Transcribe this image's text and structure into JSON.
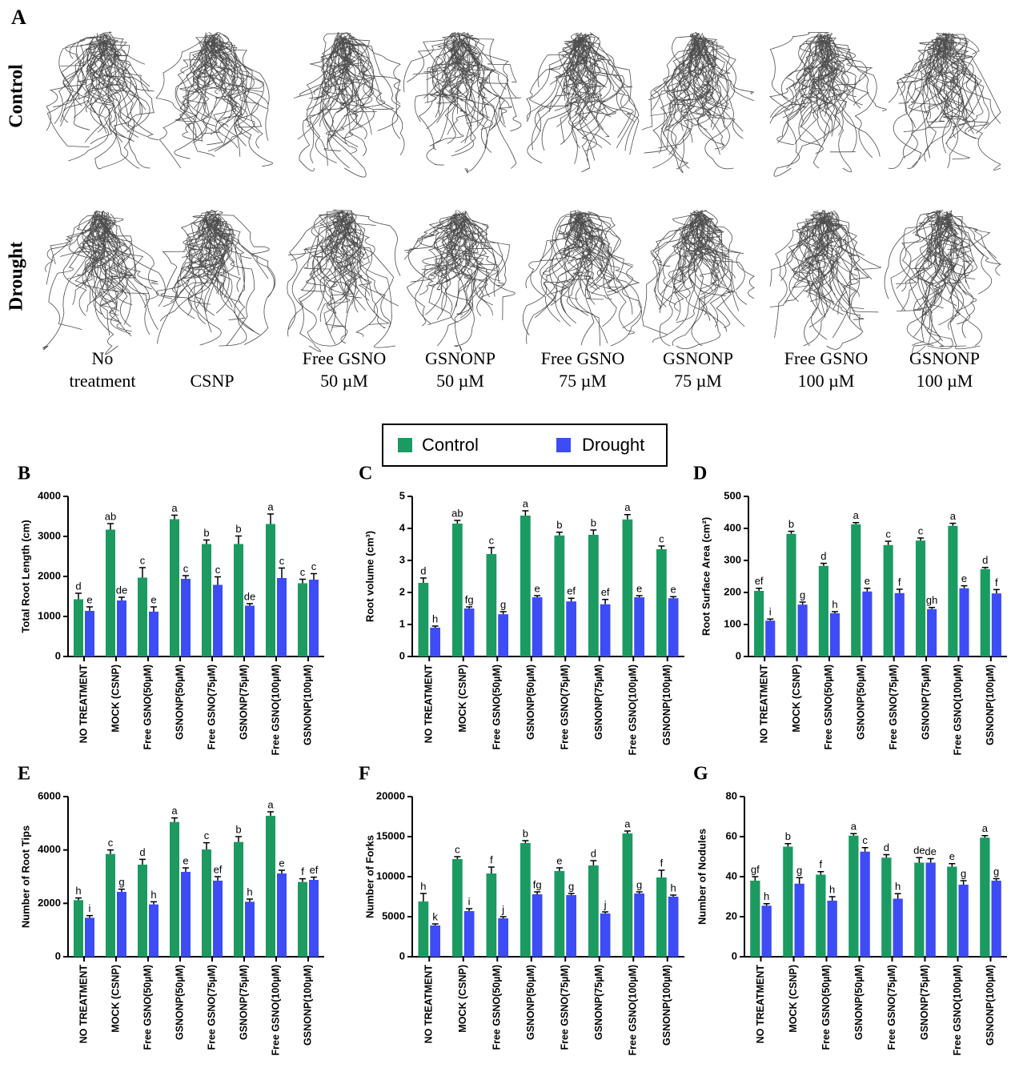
{
  "panel_a": {
    "label": "A",
    "rows": [
      "Control",
      "Drought"
    ],
    "treatments": [
      [
        "No",
        "treatment"
      ],
      [
        "CSNP"
      ],
      [
        "Free GSNO",
        "50 µM"
      ],
      [
        "GSNONP",
        "50 µM"
      ],
      [
        "Free GSNO",
        "75 µM"
      ],
      [
        "GSNONP",
        "75 µM"
      ],
      [
        "Free GSNO",
        "100 µM"
      ],
      [
        "GSNONP",
        "100 µM"
      ]
    ]
  },
  "legend": {
    "series": [
      {
        "name": "Control",
        "color": "#1b9a62"
      },
      {
        "name": "Drought",
        "color": "#3d4cf5"
      }
    ]
  },
  "chart_data": [
    {
      "type": "bar",
      "panel": "B",
      "ylabel": "Total Root Length (cm)",
      "categories": [
        "NO TREATMENT",
        "MOCK (CSNP)",
        "Free GSNO(50µM)",
        "GSNONP(50µM)",
        "Free GSNO(75µM)",
        "GSNONP(75µM)",
        "Free GSNO(100µM)",
        "GSNONP(100µM)"
      ],
      "series": [
        {
          "values": [
            1430,
            3170,
            1970,
            3430,
            2810,
            2810,
            3310,
            1830
          ],
          "errors": [
            150,
            150,
            250,
            100,
            100,
            200,
            250,
            100
          ],
          "letters": [
            "d",
            "ab",
            "c",
            "a",
            "b",
            "b",
            "a",
            "c"
          ]
        },
        {
          "values": [
            1140,
            1400,
            1120,
            1940,
            1790,
            1270,
            1960,
            1920
          ],
          "errors": [
            100,
            80,
            120,
            80,
            200,
            50,
            250,
            150
          ],
          "letters": [
            "e",
            "de",
            "e",
            "c",
            "c",
            "de",
            "c",
            "c"
          ]
        }
      ],
      "ylim": [
        0,
        4000
      ],
      "yticks": [
        0,
        1000,
        2000,
        3000,
        4000
      ]
    },
    {
      "type": "bar",
      "panel": "C",
      "ylabel": "Root volume (cm³)",
      "categories": [
        "NO TREATMENT",
        "MOCK (CSNP)",
        "Free GSNO(50µM)",
        "GSNONP(50µM)",
        "Free GSNO(75µM)",
        "GSNONP(75µM)",
        "Free GSNO(100µM)",
        "GSNONP(100µM)"
      ],
      "series": [
        {
          "values": [
            2.3,
            4.15,
            3.2,
            4.4,
            3.78,
            3.8,
            4.28,
            3.35
          ],
          "errors": [
            0.15,
            0.1,
            0.2,
            0.15,
            0.1,
            0.15,
            0.15,
            0.1
          ],
          "letters": [
            "d",
            "ab",
            "c",
            "a",
            "b",
            "b",
            "a",
            "c"
          ]
        },
        {
          "values": [
            0.9,
            1.5,
            1.32,
            1.85,
            1.72,
            1.63,
            1.85,
            1.82
          ],
          "errors": [
            0.05,
            0.05,
            0.08,
            0.05,
            0.1,
            0.15,
            0.05,
            0.05
          ],
          "letters": [
            "h",
            "fg",
            "g",
            "e",
            "ef",
            "ef",
            "e",
            "e"
          ]
        }
      ],
      "ylim": [
        0,
        5
      ],
      "yticks": [
        0,
        1,
        2,
        3,
        4,
        5
      ]
    },
    {
      "type": "bar",
      "panel": "D",
      "ylabel": "Root Surface Area (cm²)",
      "categories": [
        "NO TREATMENT",
        "MOCK (CSNP)",
        "Free GSNO(50µM)",
        "GSNONP(50µM)",
        "Free GSNO(75µM)",
        "GSNONP(75µM)",
        "Free GSNO(100µM)",
        "GSNONP(100µM)"
      ],
      "series": [
        {
          "values": [
            205,
            383,
            283,
            413,
            348,
            362,
            408,
            273
          ],
          "errors": [
            8,
            8,
            8,
            5,
            12,
            8,
            8,
            5
          ],
          "letters": [
            "ef",
            "b",
            "d",
            "a",
            "c",
            "c",
            "a",
            "d"
          ]
        },
        {
          "values": [
            112,
            162,
            135,
            203,
            198,
            148,
            213,
            197
          ],
          "errors": [
            5,
            8,
            5,
            10,
            12,
            5,
            8,
            12
          ],
          "letters": [
            "i",
            "g",
            "h",
            "e",
            "f",
            "gh",
            "e",
            "f"
          ]
        }
      ],
      "ylim": [
        0,
        500
      ],
      "yticks": [
        0,
        100,
        200,
        300,
        400,
        500
      ]
    },
    {
      "type": "bar",
      "panel": "E",
      "ylabel": "Number of Root Tips",
      "categories": [
        "NO TREATMENT",
        "MOCK (CSNP)",
        "Free GSNO(50µM)",
        "GSNONP(50µM)",
        "Free GSNO(75µM)",
        "GSNONP(75µM)",
        "Free GSNO(100µM)",
        "GSNONP(100µM)"
      ],
      "series": [
        {
          "values": [
            2120,
            3850,
            3450,
            5050,
            4020,
            4300,
            5280,
            2800
          ],
          "errors": [
            80,
            150,
            200,
            150,
            250,
            200,
            150,
            120
          ],
          "letters": [
            "h",
            "c",
            "d",
            "a",
            "c",
            "b",
            "a",
            "f"
          ]
        },
        {
          "values": [
            1460,
            2430,
            1960,
            3180,
            2850,
            2060,
            3120,
            2880
          ],
          "errors": [
            80,
            100,
            100,
            150,
            150,
            100,
            120,
            100
          ],
          "letters": [
            "i",
            "g",
            "h",
            "e",
            "ef",
            "h",
            "e",
            "ef"
          ]
        }
      ],
      "ylim": [
        0,
        6000
      ],
      "yticks": [
        0,
        2000,
        4000,
        6000
      ]
    },
    {
      "type": "bar",
      "panel": "F",
      "ylabel": "Number of Forks",
      "categories": [
        "NO TREATMENT",
        "MOCK (CSNP)",
        "Free GSNO(50µM)",
        "GSNONP(50µM)",
        "Free GSNO(75µM)",
        "GSNONP(75µM)",
        "Free GSNO(100µM)",
        "GSNONP(100µM)"
      ],
      "series": [
        {
          "values": [
            6900,
            12200,
            10400,
            14200,
            10700,
            11400,
            15400,
            9900
          ],
          "errors": [
            1000,
            300,
            800,
            300,
            400,
            600,
            300,
            900
          ],
          "letters": [
            "h",
            "c",
            "f",
            "b",
            "e",
            "d",
            "a",
            "f"
          ]
        },
        {
          "values": [
            3900,
            5700,
            4800,
            7800,
            7700,
            5400,
            7900,
            7500
          ],
          "errors": [
            200,
            300,
            200,
            300,
            200,
            200,
            200,
            200
          ],
          "letters": [
            "k",
            "i",
            "j",
            "fg",
            "g",
            "j",
            "g",
            "h"
          ]
        }
      ],
      "ylim": [
        0,
        20000
      ],
      "yticks": [
        0,
        5000,
        10000,
        15000,
        20000
      ]
    },
    {
      "type": "bar",
      "panel": "G",
      "ylabel": "Number of Nodules",
      "categories": [
        "NO TREATMENT",
        "MOCK (CSNP)",
        "Free GSNO(50µM)",
        "GSNONP(50µM)",
        "Free GSNO(75µM)",
        "GSNONP(75µM)",
        "Free GSNO(100µM)",
        "GSNONP(100µM)"
      ],
      "series": [
        {
          "values": [
            38,
            55,
            41,
            60.5,
            49.5,
            47,
            45,
            59.5
          ],
          "errors": [
            2,
            1.5,
            1.5,
            1,
            1.5,
            2.5,
            1.5,
            1
          ],
          "letters": [
            "gf",
            "b",
            "f",
            "a",
            "d",
            "de",
            "e",
            "a"
          ]
        },
        {
          "values": [
            25.5,
            36.5,
            28,
            52.5,
            29,
            47,
            36,
            38
          ],
          "errors": [
            1,
            3,
            2,
            2,
            2.5,
            2,
            2,
            1
          ],
          "letters": [
            "h",
            "g",
            "h",
            "c",
            "h",
            "de",
            "g",
            "g"
          ]
        }
      ],
      "ylim": [
        0,
        80
      ],
      "yticks": [
        0,
        20,
        40,
        60,
        80
      ]
    }
  ]
}
